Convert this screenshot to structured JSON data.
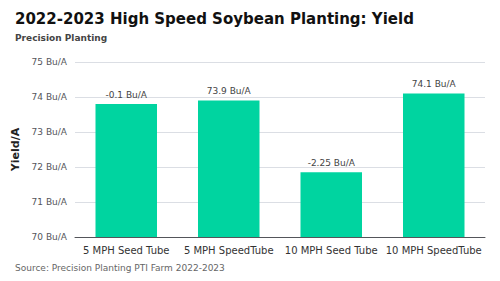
{
  "chart_data": {
    "type": "bar",
    "title": "2022-2023 High Speed Soybean Planting: Yield",
    "subtitle": "Precision Planting",
    "source": "Source: Precision Planting PTI Farm 2022-2023",
    "ylabel": "Yield/A",
    "categories": [
      "5 MPH Seed Tube",
      "5 MPH SpeedTube",
      "10 MPH Seed Tube",
      "10 MPH SpeedTube"
    ],
    "values": [
      73.8,
      73.9,
      71.85,
      74.1
    ],
    "annotations": [
      "-0.1 Bu/A",
      "73.9 Bu/A",
      "-2.25 Bu/A",
      "74.1 Bu/A"
    ],
    "color": "#00D4A0",
    "ylim": [
      70,
      75
    ],
    "yticks": [
      {
        "value": 70,
        "label": "70 Bu/A"
      },
      {
        "value": 71,
        "label": "71 Bu/A"
      },
      {
        "value": 72,
        "label": "72 Bu/A"
      },
      {
        "value": 73,
        "label": "73 Bu/A"
      },
      {
        "value": 74,
        "label": "74 Bu/A"
      },
      {
        "value": 75,
        "label": "75 Bu/A"
      }
    ],
    "grid": true
  }
}
